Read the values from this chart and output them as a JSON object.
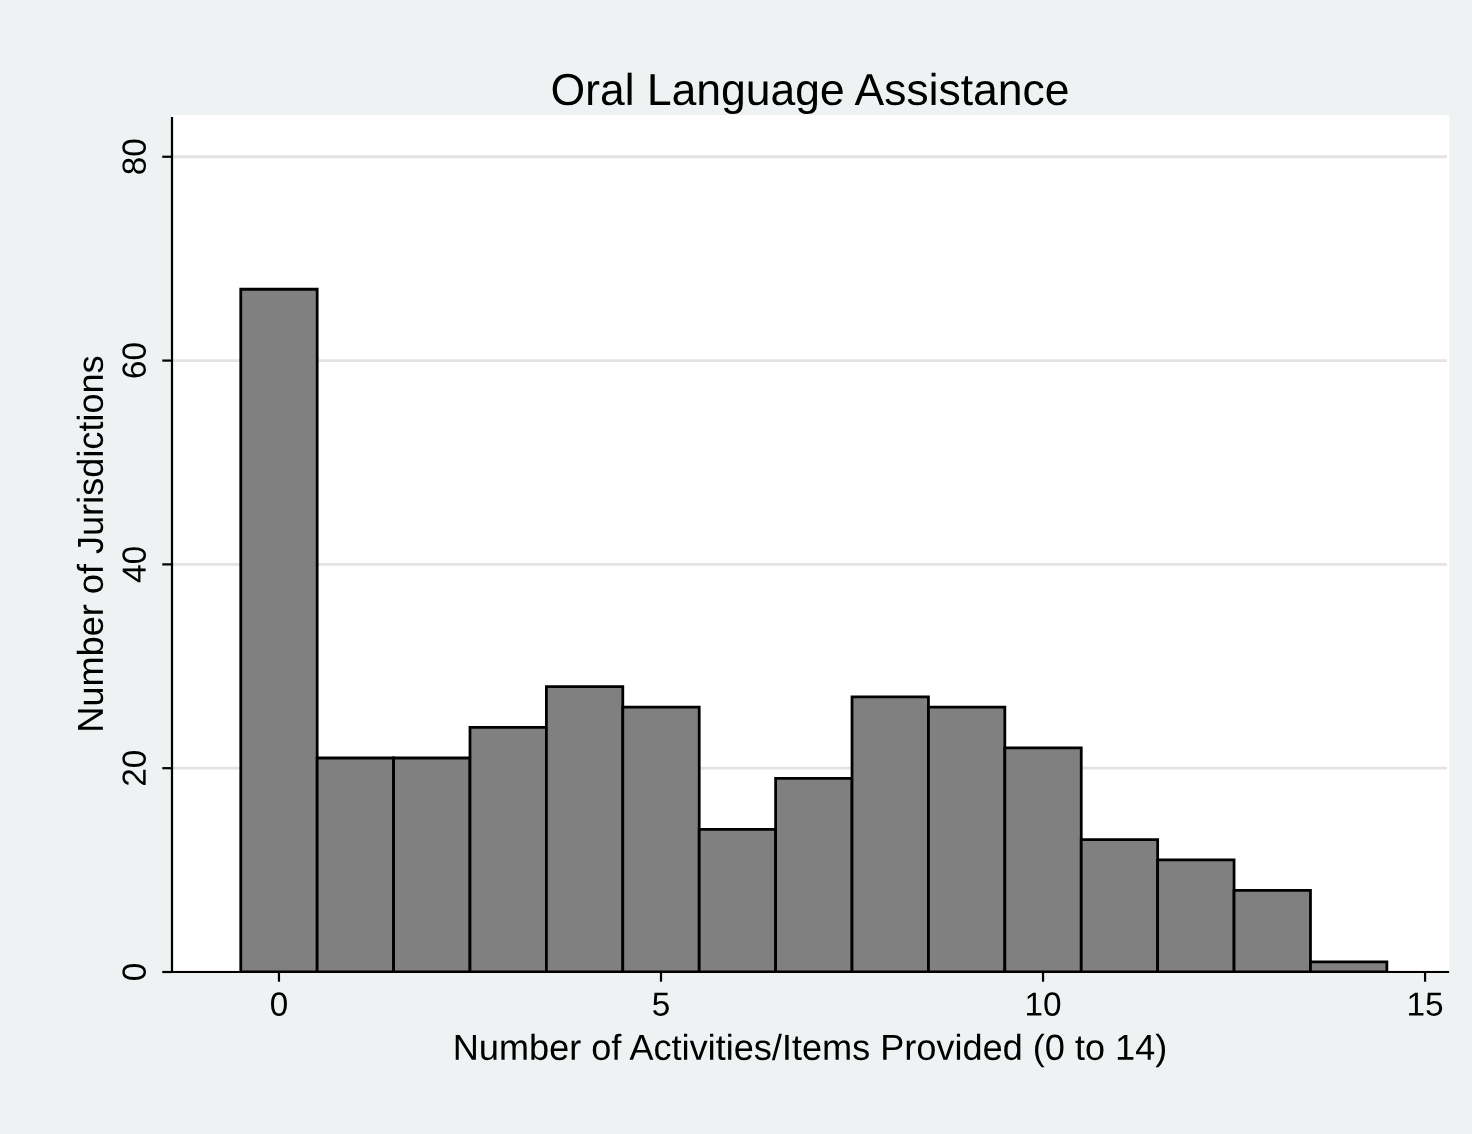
{
  "chart_data": {
    "type": "histogram",
    "title": "Oral Language Assistance",
    "xlabel": "Number of Activities/Items Provided (0 to 14)",
    "ylabel": "Number of Jurisdictions",
    "bins": [
      -0.5,
      0.5,
      1.5,
      2.5,
      3.5,
      4.5,
      5.5,
      6.5,
      7.5,
      8.5,
      9.5,
      10.5,
      11.5,
      12.5,
      13.5,
      14.5
    ],
    "values": [
      67,
      21,
      21,
      24,
      28,
      26,
      14,
      19,
      27,
      26,
      22,
      13,
      11,
      8,
      1
    ],
    "color": "#808080",
    "xlim": [
      -1.4,
      15.3
    ],
    "ylim": [
      0,
      84
    ],
    "xticks": [
      0,
      5,
      10,
      15
    ],
    "yticks": [
      0,
      20,
      40,
      60,
      80
    ],
    "grid": "y"
  }
}
